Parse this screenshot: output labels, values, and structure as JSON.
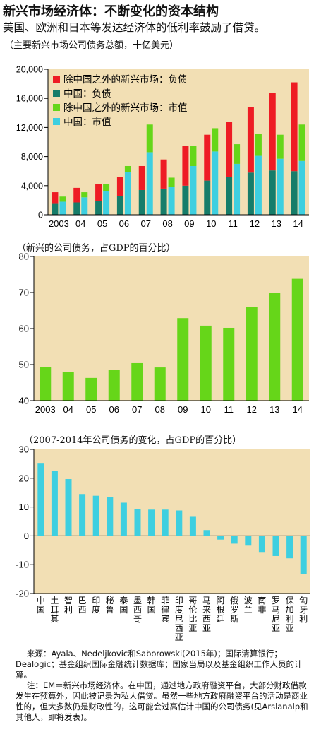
{
  "header": {
    "title": "新兴市场经济体：不断变化的资本结构",
    "subtitle": "美国、欧洲和日本等发达经济体的低利率鼓励了借贷。"
  },
  "chart_data": [
    {
      "type": "bar",
      "title": "（主要新兴市场公司债务总额，十亿美元）",
      "categories": [
        "2003",
        "04",
        "05",
        "06",
        "07",
        "08",
        "09",
        "10",
        "11",
        "12",
        "13",
        "14"
      ],
      "ylim": [
        0,
        20000
      ],
      "yticks": [
        "0",
        "4,000",
        "8,000",
        "12,000",
        "16,000",
        "20,000"
      ],
      "legend_position": "top-left",
      "series": [
        {
          "name": "除中国之外的新兴市场：负债",
          "stack": "debt",
          "color": "#ee1c24",
          "values": [
            1600,
            2000,
            2300,
            2600,
            3300,
            4000,
            5500,
            6300,
            7600,
            9000,
            10600,
            12200
          ]
        },
        {
          "name": "中国：负债",
          "stack": "debt",
          "color": "#167d6a",
          "values": [
            1500,
            1700,
            1900,
            2600,
            3400,
            3600,
            4000,
            4700,
            5200,
            5800,
            6100,
            6000
          ]
        },
        {
          "name": "除中国之外的新兴市场：市值",
          "stack": "mcap",
          "color": "#66d619",
          "values": [
            700,
            700,
            900,
            800,
            3800,
            1300,
            2800,
            3200,
            2700,
            3000,
            3300,
            5000
          ]
        },
        {
          "name": "中国：市值",
          "stack": "mcap",
          "color": "#3ecfe0",
          "values": [
            1800,
            2400,
            3300,
            5900,
            8600,
            3800,
            6700,
            8700,
            7000,
            8100,
            7700,
            7400
          ]
        }
      ]
    },
    {
      "type": "bar",
      "title": "（新兴的公司债务，占GDP的百分比）",
      "categories": [
        "2003",
        "04",
        "05",
        "06",
        "07",
        "08",
        "09",
        "10",
        "11",
        "12",
        "13",
        "14"
      ],
      "ylim": [
        40,
        80
      ],
      "yticks": [
        "40",
        "50",
        "60",
        "70",
        "80"
      ],
      "color": "#66d619",
      "values": [
        49.3,
        48,
        46.3,
        48.5,
        50.4,
        49.2,
        62.9,
        60.8,
        60.2,
        65.9,
        70,
        73.8
      ]
    },
    {
      "type": "bar",
      "title": "（2007-2014年公司债务的变化，占GDP的百分比）",
      "categories": [
        "中国",
        "土耳其",
        "智利",
        "巴西",
        "印度",
        "秘鲁",
        "泰国",
        "墨西哥",
        "韩国",
        "菲律宾",
        "印度尼西亚",
        "哥伦比亚",
        "马来西亚",
        "阿根廷",
        "俄罗斯",
        "波兰",
        "南非",
        "罗马尼亚",
        "保加利亚",
        "匈牙利"
      ],
      "ylim": [
        -20,
        30
      ],
      "yticks": [
        "-20",
        "-10",
        "0",
        "10",
        "20",
        "30"
      ],
      "color": "#3ecfe0",
      "values": [
        25.3,
        22.5,
        19.7,
        14.5,
        13.9,
        13.5,
        11.5,
        9.3,
        9.1,
        9.1,
        8.8,
        6.6,
        2,
        -1.3,
        -2.7,
        -3.4,
        -5.6,
        -7,
        -7.8,
        -13.3
      ]
    }
  ],
  "footer": {
    "source": "来源：Ayala、Nedeljkovic和Saborowski(2015年)；国际清算银行；Dealogic；基金组织国际金融统计数据库；国家当局以及基金组织工作人员的计算。",
    "note": "注：EM＝新兴市场经济体。在中国，通过地方政府融资平台，大部分财政借款发生在预算外，因此被记录为私人借贷。虽然一些地方政府融资平台的活动是商业性的，但大多数仍是财政性的，这可能会过高估计中国的公司债务(见Arslanalp和其他人，即将发表)。"
  }
}
